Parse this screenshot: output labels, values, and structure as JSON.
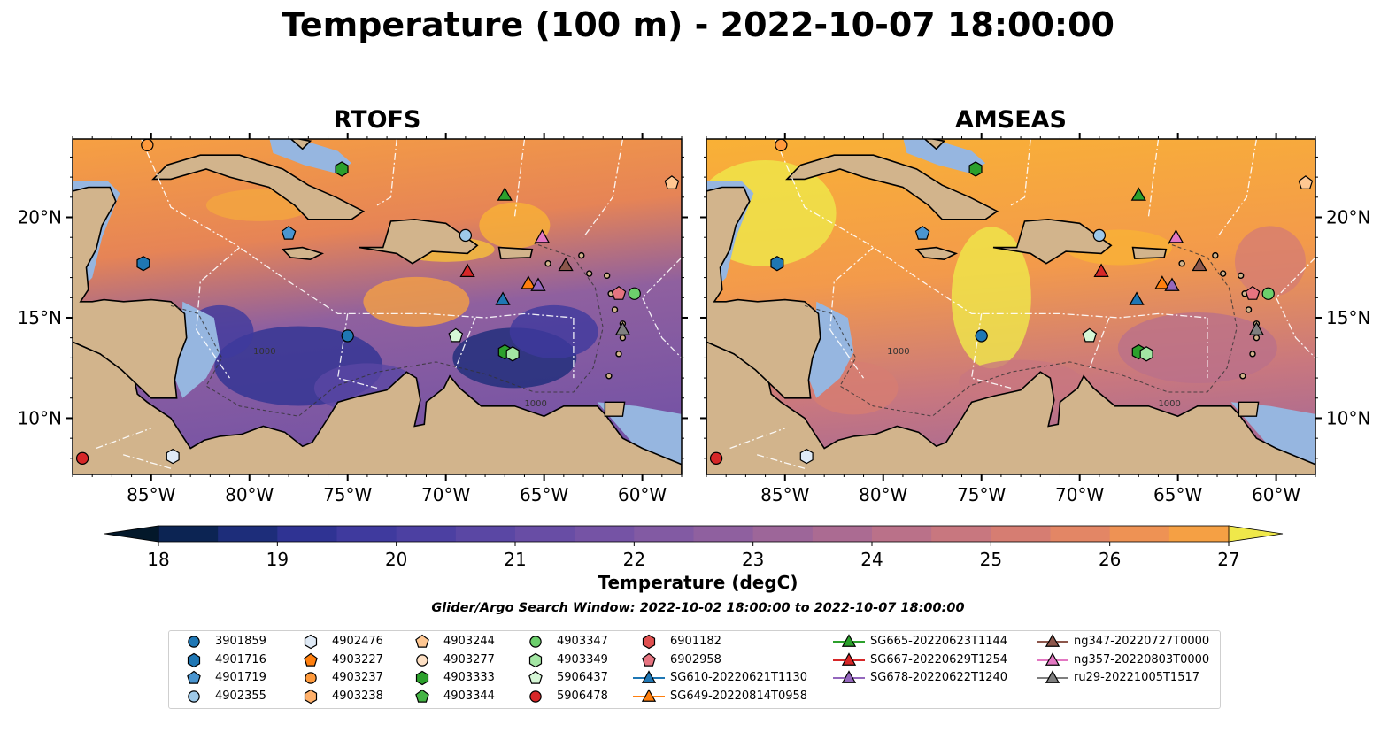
{
  "title": "Temperature (100 m) - 2022-10-07 18:00:00",
  "panels": [
    {
      "title": "RTOFS",
      "model": "rtofs"
    },
    {
      "title": "AMSEAS",
      "model": "amseas"
    }
  ],
  "map": {
    "lon_range": [
      -89,
      -58
    ],
    "lat_range": [
      7.2,
      23.9
    ],
    "x_ticks": [
      {
        "lon": -85,
        "label": "85°W"
      },
      {
        "lon": -80,
        "label": "80°W"
      },
      {
        "lon": -75,
        "label": "75°W"
      },
      {
        "lon": -70,
        "label": "70°W"
      },
      {
        "lon": -65,
        "label": "65°W"
      },
      {
        "lon": -60,
        "label": "60°W"
      }
    ],
    "y_ticks": [
      {
        "lat": 20,
        "label": "20°N"
      },
      {
        "lat": 15,
        "label": "15°N"
      },
      {
        "lat": 10,
        "label": "10°N"
      }
    ],
    "land_color": "#d2b48c",
    "shelf_color": "#96b6e0",
    "contour_label": "1000"
  },
  "colorbar": {
    "label": "Temperature (degC)",
    "ticks": [
      "18",
      "19",
      "20",
      "21",
      "22",
      "23",
      "24",
      "25",
      "26",
      "27"
    ],
    "min": 18,
    "max": 27,
    "step": 0.5,
    "colors": [
      "#03182a",
      "#0c2453",
      "#1d2d7a",
      "#2f3393",
      "#3f3a9e",
      "#4c40a2",
      "#5a47a4",
      "#684da5",
      "#7553a5",
      "#825aa3",
      "#8f609f",
      "#9d6699",
      "#ab6b92",
      "#ba7189",
      "#c8777f",
      "#d67d72",
      "#e38665",
      "#ee9254",
      "#f5a044",
      "#f9b136",
      "#fbc42f",
      "#f6d631",
      "#efe84a"
    ]
  },
  "search_window": "Glider/Argo Search Window: 2022-10-02 18:00:00 to 2022-10-07 18:00:00",
  "legend": [
    {
      "label": "3901859",
      "shape": "circle",
      "color": "#1f77b4"
    },
    {
      "label": "4901716",
      "shape": "hexagon",
      "color": "#1f77b4"
    },
    {
      "label": "4901719",
      "shape": "pentagon",
      "color": "#4a95d0"
    },
    {
      "label": "4902355",
      "shape": "circle",
      "color": "#9ec9e8"
    },
    {
      "label": "4902476",
      "shape": "hexagon",
      "color": "#dfeaf6"
    },
    {
      "label": "4903227",
      "shape": "pentagon",
      "color": "#ff7f0e"
    },
    {
      "label": "4903237",
      "shape": "circle",
      "color": "#ff9a3c"
    },
    {
      "label": "4903238",
      "shape": "hexagon",
      "color": "#ffb06a"
    },
    {
      "label": "4903244",
      "shape": "pentagon",
      "color": "#ffc792"
    },
    {
      "label": "4903277",
      "shape": "circle",
      "color": "#fee0c4"
    },
    {
      "label": "4903333",
      "shape": "hexagon",
      "color": "#2ca02c"
    },
    {
      "label": "4903344",
      "shape": "pentagon",
      "color": "#44b444"
    },
    {
      "label": "4903347",
      "shape": "circle",
      "color": "#6ccf6c"
    },
    {
      "label": "4903349",
      "shape": "hexagon",
      "color": "#a3e6a3"
    },
    {
      "label": "5906437",
      "shape": "pentagon",
      "color": "#d6f7d6"
    },
    {
      "label": "5906478",
      "shape": "circle",
      "color": "#d62728"
    },
    {
      "label": "6901182",
      "shape": "hexagon",
      "color": "#e05050"
    },
    {
      "label": "6902958",
      "shape": "pentagon",
      "color": "#e67480"
    },
    {
      "label": "SG610-20220621T1130",
      "shape": "triangle",
      "color": "#1f77b4"
    },
    {
      "label": "SG649-20220814T0958",
      "shape": "triangle",
      "color": "#ff7f0e"
    },
    {
      "label": "SG665-20220623T1144",
      "shape": "triangle",
      "color": "#2ca02c"
    },
    {
      "label": "SG667-20220629T1254",
      "shape": "triangle",
      "color": "#d62728"
    },
    {
      "label": "SG678-20220622T1240",
      "shape": "triangle",
      "color": "#9467bd"
    },
    {
      "label": "ng347-20220727T0000",
      "shape": "triangle",
      "color": "#8c564b"
    },
    {
      "label": "ng357-20220803T0000",
      "shape": "triangle",
      "color": "#e377c2"
    },
    {
      "label": "ru29-20221005T1517",
      "shape": "triangle",
      "color": "#7f7f7f"
    }
  ],
  "markers": [
    {
      "id": "4903237",
      "lon": -85.2,
      "lat": 23.6
    },
    {
      "id": "4903333",
      "lon": -75.3,
      "lat": 22.4
    },
    {
      "id": "SG665-20220623T1144",
      "lon": -67.0,
      "lat": 21.1
    },
    {
      "id": "4903244",
      "lon": -58.5,
      "lat": 21.7
    },
    {
      "id": "4901719",
      "lon": -78.0,
      "lat": 19.2
    },
    {
      "id": "4902355",
      "lon": -69.0,
      "lat": 19.1
    },
    {
      "id": "ng357-20220803T0000",
      "lon": -65.1,
      "lat": 19.0
    },
    {
      "id": "4901716",
      "lon": -85.4,
      "lat": 17.7
    },
    {
      "id": "SG667-20220629T1254",
      "lon": -68.9,
      "lat": 17.3
    },
    {
      "id": "ng347-20220727T0000",
      "lon": -63.9,
      "lat": 17.6
    },
    {
      "id": "SG649-20220814T0958",
      "lon": -65.8,
      "lat": 16.7
    },
    {
      "id": "SG678-20220622T1240",
      "lon": -65.3,
      "lat": 16.6
    },
    {
      "id": "SG610-20220621T1130",
      "lon": -67.1,
      "lat": 15.9
    },
    {
      "id": "4903347",
      "lon": -60.4,
      "lat": 16.2
    },
    {
      "id": "6902958",
      "lon": -61.2,
      "lat": 16.2
    },
    {
      "id": "ru29-20221005T1517",
      "lon": -61.0,
      "lat": 14.4
    },
    {
      "id": "3901859",
      "lon": -75.0,
      "lat": 14.1
    },
    {
      "id": "5906437",
      "lon": -69.5,
      "lat": 14.1
    },
    {
      "id": "4903333",
      "lon": -67.0,
      "lat": 13.3
    },
    {
      "id": "4903349",
      "lon": -66.6,
      "lat": 13.2
    },
    {
      "id": "4902476",
      "lon": -83.9,
      "lat": 8.1
    },
    {
      "id": "5906478",
      "lon": -88.5,
      "lat": 8.0
    }
  ]
}
